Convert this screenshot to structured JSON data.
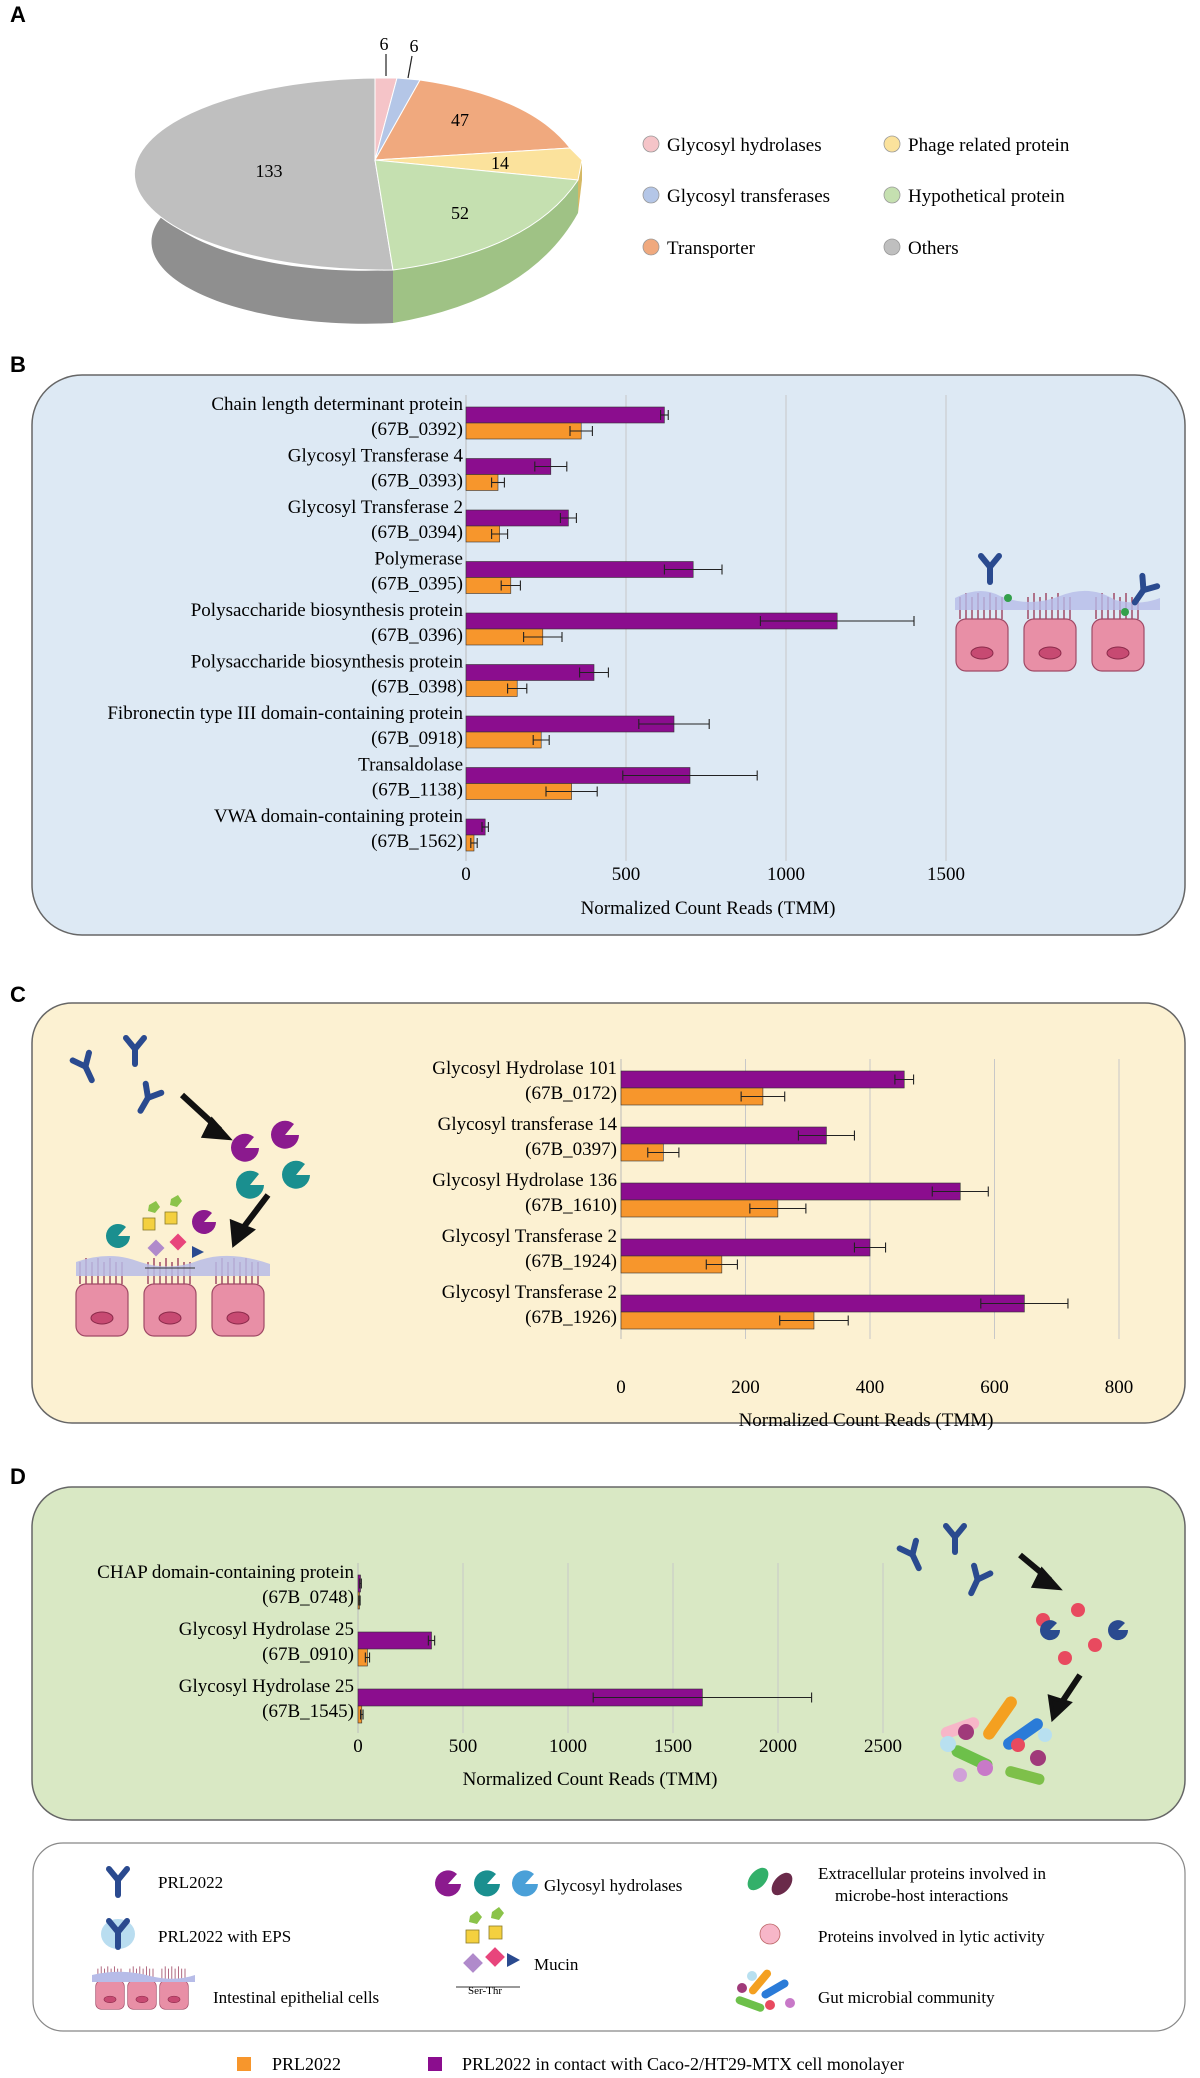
{
  "colors": {
    "prl": "#f7962c",
    "contact": "#8b0d8e",
    "panel_b_bg": "#dde9f4",
    "panel_c_bg": "#fcf1d2",
    "panel_d_bg": "#d9e8c4",
    "legend_bg": "#ffffff"
  },
  "panels": {
    "a": "A",
    "b": "B",
    "c": "C",
    "d": "D"
  },
  "chart_data": [
    {
      "type": "pie",
      "panel": "A",
      "labels": [
        "Glycosyl hydrolases",
        "Glycosyl transferases",
        "Transporter",
        "Phage related protein",
        "Hypothetical protein",
        "Others"
      ],
      "values": [
        6,
        6,
        47,
        14,
        52,
        133
      ],
      "value_labels": [
        "6",
        "6",
        "47",
        "14",
        "52",
        "133"
      ],
      "colors": [
        "#f5c4c8",
        "#b4c6e7",
        "#f0a97e",
        "#fbe29c",
        "#c5e0b0",
        "#bfbfbf"
      ],
      "legend_position": "right"
    },
    {
      "type": "bar",
      "panel": "B",
      "orientation": "horizontal",
      "categories": [
        [
          "Chain length determinant protein",
          "(67B_0392)"
        ],
        [
          "Glycosyl Transferase 4",
          "(67B_0393)"
        ],
        [
          "Glycosyl Transferase 2",
          "(67B_0394)"
        ],
        [
          "Polymerase",
          "(67B_0395)"
        ],
        [
          "Polysaccharide biosynthesis protein",
          "(67B_0396)"
        ],
        [
          "Polysaccharide biosynthesis protein",
          "(67B_0398)"
        ],
        [
          "Fibronectin type III domain-containing protein",
          "(67B_0918)"
        ],
        [
          "Transaldolase",
          "(67B_1138)"
        ],
        [
          "VWA domain-containing protein",
          "(67B_1562)"
        ]
      ],
      "series": [
        {
          "name": "PRL2022 in contact with Caco-2/HT29-MTX cell monolayer",
          "values": [
            620,
            265,
            320,
            710,
            1160,
            400,
            650,
            700,
            60
          ],
          "errors": [
            12,
            50,
            25,
            90,
            240,
            45,
            110,
            210,
            10
          ]
        },
        {
          "name": "PRL2022",
          "values": [
            360,
            100,
            105,
            140,
            240,
            160,
            235,
            330,
            25
          ],
          "errors": [
            35,
            20,
            25,
            30,
            60,
            30,
            25,
            80,
            10
          ]
        }
      ],
      "xlabel": "Normalized Count Reads (TMM)",
      "ticks": [
        "0",
        "500",
        "1000",
        "1500"
      ],
      "xlim": [
        0,
        1650
      ],
      "grid": true
    },
    {
      "type": "bar",
      "panel": "C",
      "orientation": "horizontal",
      "categories": [
        [
          "Glycosyl Hydrolase 101",
          "(67B_0172)"
        ],
        [
          "Glycosyl transferase 14",
          "(67B_0397)"
        ],
        [
          "Glycosyl Hydrolase 136",
          "(67B_1610)"
        ],
        [
          "Glycosyl Transferase 2",
          "(67B_1924)"
        ],
        [
          "Glycosyl Transferase 2",
          "(67B_1926)"
        ]
      ],
      "series": [
        {
          "name": "PRL2022 in contact with Caco-2/HT29-MTX cell monolayer",
          "values": [
            455,
            330,
            545,
            400,
            648
          ],
          "errors": [
            15,
            45,
            45,
            25,
            70
          ]
        },
        {
          "name": "PRL2022",
          "values": [
            228,
            68,
            252,
            162,
            310
          ],
          "errors": [
            35,
            25,
            45,
            25,
            55
          ]
        }
      ],
      "xlabel": "Normalized Count Reads (TMM)",
      "ticks": [
        "0",
        "200",
        "400",
        "600",
        "800"
      ],
      "xlim": [
        0,
        850
      ],
      "grid": true
    },
    {
      "type": "bar",
      "panel": "D",
      "orientation": "horizontal",
      "categories": [
        [
          "CHAP domain-containing protein",
          "(67B_0748)"
        ],
        [
          "Glycosyl Hydrolase 25",
          "(67B_0910)"
        ],
        [
          "Glycosyl Hydrolase 25",
          "(67B_1545)"
        ]
      ],
      "series": [
        {
          "name": "PRL2022 in contact with Caco-2/HT29-MTX cell monolayer",
          "values": [
            12,
            350,
            1640
          ],
          "errors": [
            4,
            15,
            520
          ]
        },
        {
          "name": "PRL2022",
          "values": [
            6,
            45,
            18
          ],
          "errors": [
            3,
            10,
            6
          ]
        }
      ],
      "xlabel": "Normalized Count Reads (TMM)",
      "ticks": [
        "0",
        "500",
        "1000",
        "1500",
        "2000",
        "2500"
      ],
      "xlim": [
        0,
        2650
      ],
      "grid": true
    }
  ],
  "legend": {
    "prl2022": "PRL2022",
    "prl2022_eps": "PRL2022 with EPS",
    "epithelial": "Intestinal epithelial cells",
    "hydrolases": "Glycosyl hydrolases",
    "mucin": "Mucin",
    "ser_thr": "Ser-Thr",
    "extracellular_1": "Extracellular proteins involved in",
    "extracellular_2": "microbe-host interactions",
    "lytic": "Proteins involved in lytic activity",
    "gut": "Gut microbial community",
    "series_prl": "PRL2022",
    "series_contact": "PRL2022 in contact with Caco-2/HT29-MTX cell monolayer"
  }
}
